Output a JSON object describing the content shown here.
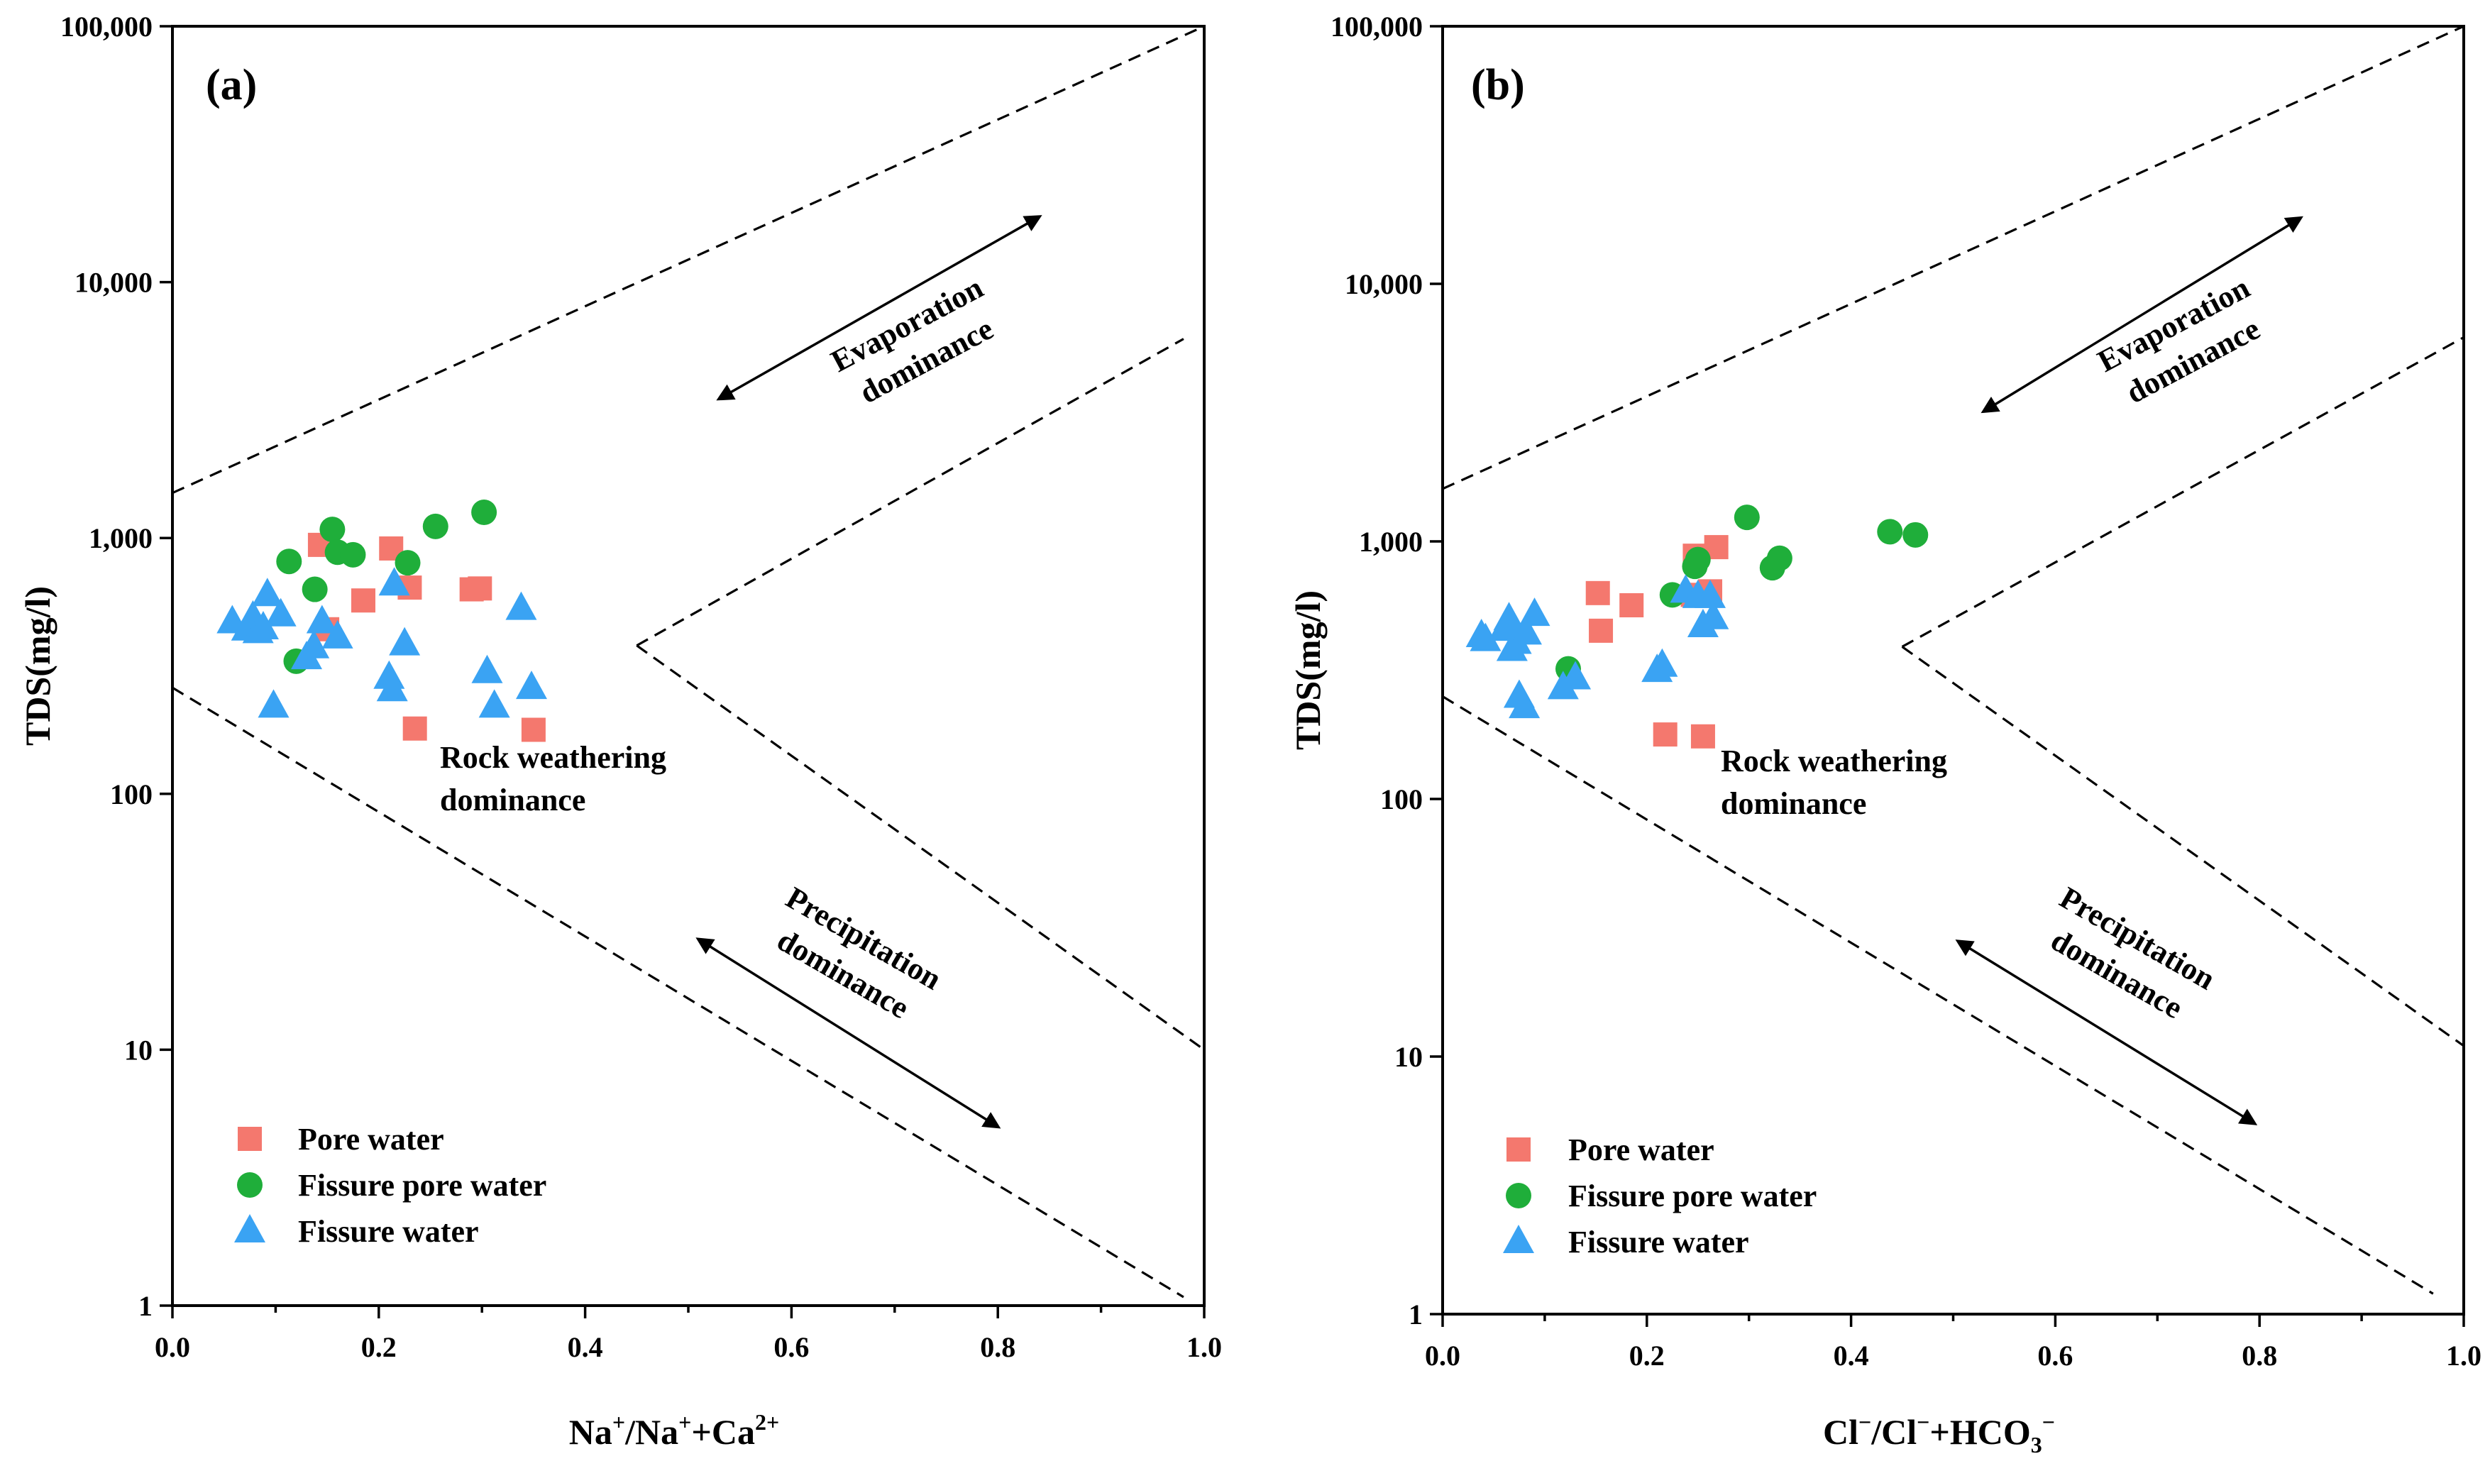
{
  "chart_data": [
    {
      "type": "scatter",
      "panel_label": "(a)",
      "xlabel": "Na⁺/Na⁺+Ca²⁺",
      "ylabel": "TDS(mg/l)",
      "xlim": [
        0,
        1
      ],
      "ylim": [
        1,
        100000
      ],
      "yscale": "log",
      "x_ticks": [
        0.0,
        0.2,
        0.4,
        0.6,
        0.8,
        1.0
      ],
      "x_tick_labels": [
        "0.0",
        "0.2",
        "0.4",
        "0.6",
        "0.8",
        "1.0"
      ],
      "y_ticks": [
        1,
        10,
        100,
        1000,
        10000,
        100000
      ],
      "y_tick_labels": [
        "1",
        "10",
        "100",
        "1,000",
        "10,000",
        "100,000"
      ],
      "region_labels": {
        "evaporation": [
          "Evaporation",
          "dominance"
        ],
        "rock": [
          "Rock weathering",
          "dominance"
        ],
        "precipitation": [
          "Precipitation",
          "dominance"
        ]
      },
      "boundaries": {
        "upper": [
          [
            0,
            1500
          ],
          [
            1,
            100000
          ]
        ],
        "inner": [
          [
            0.45,
            380
          ],
          [
            0.98,
            6000
          ]
        ],
        "inner_lower": [
          [
            0.45,
            380
          ],
          [
            1,
            10
          ]
        ],
        "lower": [
          [
            0,
            260
          ],
          [
            0.98,
            1.08
          ]
        ]
      },
      "arrows": {
        "evaporation": [
          [
            0.53,
            3500
          ],
          [
            0.84,
            18000
          ]
        ],
        "precipitation": [
          [
            0.51,
            27
          ],
          [
            0.8,
            5
          ]
        ]
      },
      "series": [
        {
          "name": "Pore water",
          "marker": "square",
          "color": "#f4786e",
          "points": [
            [
              0.143,
              940
            ],
            [
              0.15,
              440
            ],
            [
              0.185,
              570
            ],
            [
              0.212,
              910
            ],
            [
              0.23,
              640
            ],
            [
              0.235,
              180
            ],
            [
              0.29,
              630
            ],
            [
              0.298,
              635
            ],
            [
              0.35,
              178
            ]
          ]
        },
        {
          "name": "Fissure pore water",
          "marker": "circle",
          "color": "#1fae3a",
          "points": [
            [
              0.113,
              810
            ],
            [
              0.12,
              330
            ],
            [
              0.138,
              630
            ],
            [
              0.155,
              1080
            ],
            [
              0.16,
              880
            ],
            [
              0.175,
              860
            ],
            [
              0.228,
              800
            ],
            [
              0.255,
              1110
            ],
            [
              0.302,
              1260
            ]
          ]
        },
        {
          "name": "Fissure water",
          "marker": "triangle",
          "color": "#3aa3f3",
          "points": [
            [
              0.058,
              470
            ],
            [
              0.072,
              440
            ],
            [
              0.078,
              490
            ],
            [
              0.083,
              430
            ],
            [
              0.088,
              445
            ],
            [
              0.092,
              600
            ],
            [
              0.098,
              220
            ],
            [
              0.105,
              500
            ],
            [
              0.13,
              340
            ],
            [
              0.137,
              375
            ],
            [
              0.145,
              470
            ],
            [
              0.16,
              410
            ],
            [
              0.21,
              285
            ],
            [
              0.213,
              255
            ],
            [
              0.215,
              660
            ],
            [
              0.225,
              385
            ],
            [
              0.305,
              300
            ],
            [
              0.312,
              220
            ],
            [
              0.338,
              530
            ],
            [
              0.348,
              260
            ]
          ]
        }
      ],
      "legend": [
        "Pore water",
        "Fissure pore water",
        "Fissure water"
      ]
    },
    {
      "type": "scatter",
      "panel_label": "(b)",
      "xlabel": "Cl⁻/Cl⁻+HCO₃⁻",
      "ylabel": "TDS(mg/l)",
      "xlim": [
        0,
        1
      ],
      "ylim": [
        1,
        100000
      ],
      "yscale": "log",
      "x_ticks": [
        0.0,
        0.2,
        0.4,
        0.6,
        0.8,
        1.0
      ],
      "x_tick_labels": [
        "0.0",
        "0.2",
        "0.4",
        "0.6",
        "0.8",
        "1.0"
      ],
      "y_ticks": [
        1,
        10,
        100,
        1000,
        10000,
        100000
      ],
      "y_tick_labels": [
        "1",
        "10",
        "100",
        "1,000",
        "10,000",
        "100,000"
      ],
      "region_labels": {
        "evaporation": [
          "Evaporation",
          "dominance"
        ],
        "rock": [
          "Rock weathering",
          "dominance"
        ],
        "precipitation": [
          "Precipitation",
          "dominance"
        ]
      },
      "boundaries": {
        "upper": [
          [
            0,
            1600
          ],
          [
            1,
            100000
          ]
        ],
        "inner": [
          [
            0.45,
            390
          ],
          [
            1,
            6200
          ]
        ],
        "inner_lower": [
          [
            0.45,
            390
          ],
          [
            1,
            11
          ]
        ],
        "lower": [
          [
            0,
            250
          ],
          [
            0.97,
            1.2
          ]
        ]
      },
      "arrows": {
        "evaporation": [
          [
            0.53,
            3200
          ],
          [
            0.84,
            18000
          ]
        ],
        "precipitation": [
          [
            0.505,
            28
          ],
          [
            0.795,
            5.5
          ]
        ]
      },
      "series": [
        {
          "name": "Pore water",
          "marker": "square",
          "color": "#f4786e",
          "points": [
            [
              0.152,
              630
            ],
            [
              0.155,
              450
            ],
            [
              0.185,
              565
            ],
            [
              0.218,
              178
            ],
            [
              0.245,
              620
            ],
            [
              0.247,
              880
            ],
            [
              0.255,
              175
            ],
            [
              0.262,
              640
            ],
            [
              0.268,
              950
            ]
          ]
        },
        {
          "name": "Fissure pore water",
          "marker": "circle",
          "color": "#1fae3a",
          "points": [
            [
              0.123,
              320
            ],
            [
              0.225,
              620
            ],
            [
              0.247,
              800
            ],
            [
              0.25,
              850
            ],
            [
              0.298,
              1240
            ],
            [
              0.323,
              790
            ],
            [
              0.33,
              860
            ],
            [
              0.438,
              1090
            ],
            [
              0.463,
              1060
            ]
          ]
        },
        {
          "name": "Fissure water",
          "marker": "triangle",
          "color": "#3aa3f3",
          "points": [
            [
              0.038,
              430
            ],
            [
              0.042,
              415
            ],
            [
              0.06,
              455
            ],
            [
              0.065,
              500
            ],
            [
              0.068,
              380
            ],
            [
              0.072,
              405
            ],
            [
              0.075,
              250
            ],
            [
              0.08,
              228
            ],
            [
              0.082,
              440
            ],
            [
              0.09,
              520
            ],
            [
              0.118,
              270
            ],
            [
              0.13,
              295
            ],
            [
              0.21,
              315
            ],
            [
              0.215,
              330
            ],
            [
              0.238,
              640
            ],
            [
              0.25,
              610
            ],
            [
              0.255,
              470
            ],
            [
              0.262,
              610
            ],
            [
              0.265,
              505
            ]
          ]
        }
      ],
      "legend": [
        "Pore water",
        "Fissure pore water",
        "Fissure water"
      ]
    }
  ]
}
